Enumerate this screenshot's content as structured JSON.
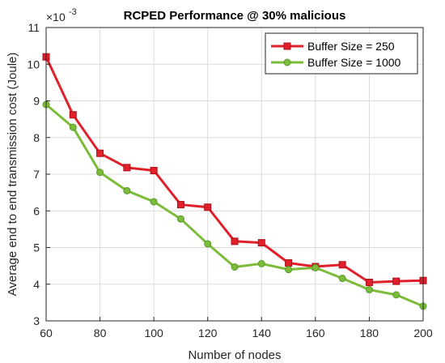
{
  "chart_data": {
    "type": "line",
    "title": "RCPED Performance @ 30% malicious",
    "xlabel": "Number of nodes",
    "ylabel": "Average end to end transmission cost (Joule)",
    "y_exponent_label": "×10",
    "y_exponent_power": "-3",
    "xlim": [
      60,
      200
    ],
    "ylim": [
      3,
      11
    ],
    "x_ticks": [
      60,
      80,
      100,
      120,
      140,
      160,
      180,
      200
    ],
    "y_ticks": [
      3,
      4,
      5,
      6,
      7,
      8,
      9,
      10,
      11
    ],
    "grid": true,
    "legend_position": "top-right",
    "x": [
      60,
      70,
      80,
      90,
      100,
      110,
      120,
      130,
      140,
      150,
      160,
      170,
      180,
      190,
      200
    ],
    "series": [
      {
        "name": "Buffer Size = 250",
        "color": "#e0202a",
        "marker": "square",
        "values": [
          10.2,
          8.62,
          7.57,
          7.18,
          7.1,
          6.17,
          6.1,
          5.17,
          5.13,
          4.58,
          4.48,
          4.53,
          4.05,
          4.08,
          4.1
        ]
      },
      {
        "name": "Buffer Size = 1000",
        "color": "#7cbc3a",
        "marker": "circle",
        "values": [
          8.9,
          8.28,
          7.05,
          6.55,
          6.25,
          5.78,
          5.1,
          4.47,
          4.56,
          4.4,
          4.45,
          4.16,
          3.85,
          3.71,
          3.4
        ]
      }
    ]
  }
}
